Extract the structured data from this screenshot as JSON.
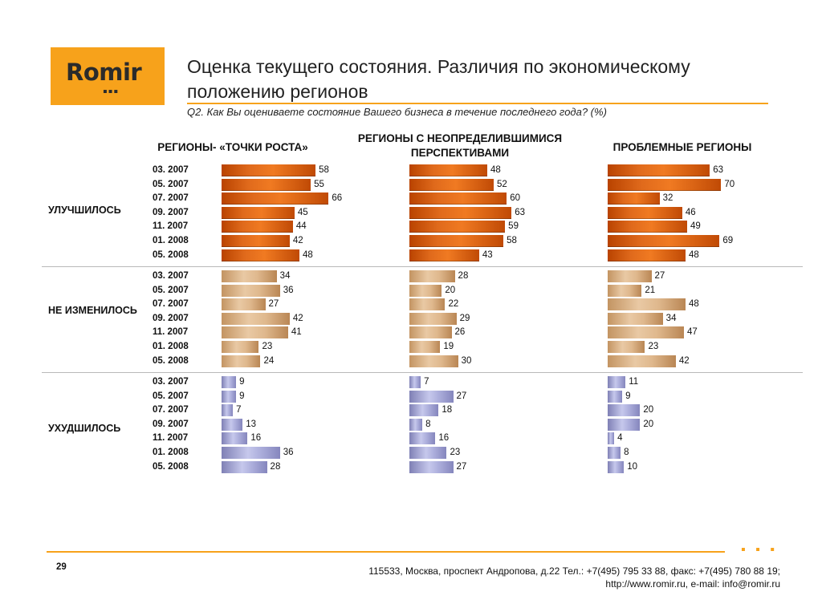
{
  "logo": {
    "text": "Romir",
    "dots": "▪▪▪"
  },
  "title": "Оценка текущего состояния. Различия по экономическому положению регионов",
  "subtitle": "Q2. Как Вы оцениваете состояние Вашего бизнеса в течение последнего года? (%)",
  "footer": {
    "page": "29",
    "line1": "115533, Москва, проспект Андропова, д.22   Тел.: +7(495) 795 33 88, факс: +7(495) 780 88 19;",
    "line2": "http://www.romir.ru, e-mail: info@romir.ru",
    "dots": "▪ ▪ ▪"
  },
  "colors": {
    "accent": "#f7a21b",
    "improved": "#e06a1c",
    "unchanged": "#e0bb91",
    "worsened": "#aeb0dd"
  },
  "chart_data": {
    "type": "bar",
    "orientation": "horizontal",
    "categories": [
      "03. 2007",
      "05. 2007",
      "07. 2007",
      "09. 2007",
      "11. 2007",
      "01. 2008",
      "05. 2008"
    ],
    "columns": [
      "РЕГИОНЫ- «ТОЧКИ РОСТА»",
      "РЕГИОНЫ   С НЕОПРЕДЕЛИВШИМИСЯ ПЕРСПЕКТИВАМИ",
      "ПРОБЛЕМНЫЕ РЕГИОНЫ"
    ],
    "groups": [
      {
        "label": "УЛУЧШИЛОСЬ",
        "values": [
          [
            58,
            55,
            66,
            45,
            44,
            42,
            48
          ],
          [
            48,
            52,
            60,
            63,
            59,
            58,
            43
          ],
          [
            63,
            70,
            32,
            46,
            49,
            69,
            48
          ]
        ]
      },
      {
        "label": "НЕ ИЗМЕНИЛОСЬ",
        "values": [
          [
            34,
            36,
            27,
            42,
            41,
            23,
            24
          ],
          [
            28,
            20,
            22,
            29,
            26,
            19,
            30
          ],
          [
            27,
            21,
            48,
            34,
            47,
            23,
            42
          ]
        ]
      },
      {
        "label": "УХУДШИЛОСЬ",
        "values": [
          [
            9,
            9,
            7,
            13,
            16,
            36,
            28
          ],
          [
            7,
            27,
            18,
            8,
            16,
            23,
            27
          ],
          [
            11,
            9,
            20,
            20,
            4,
            8,
            10
          ]
        ]
      }
    ]
  }
}
